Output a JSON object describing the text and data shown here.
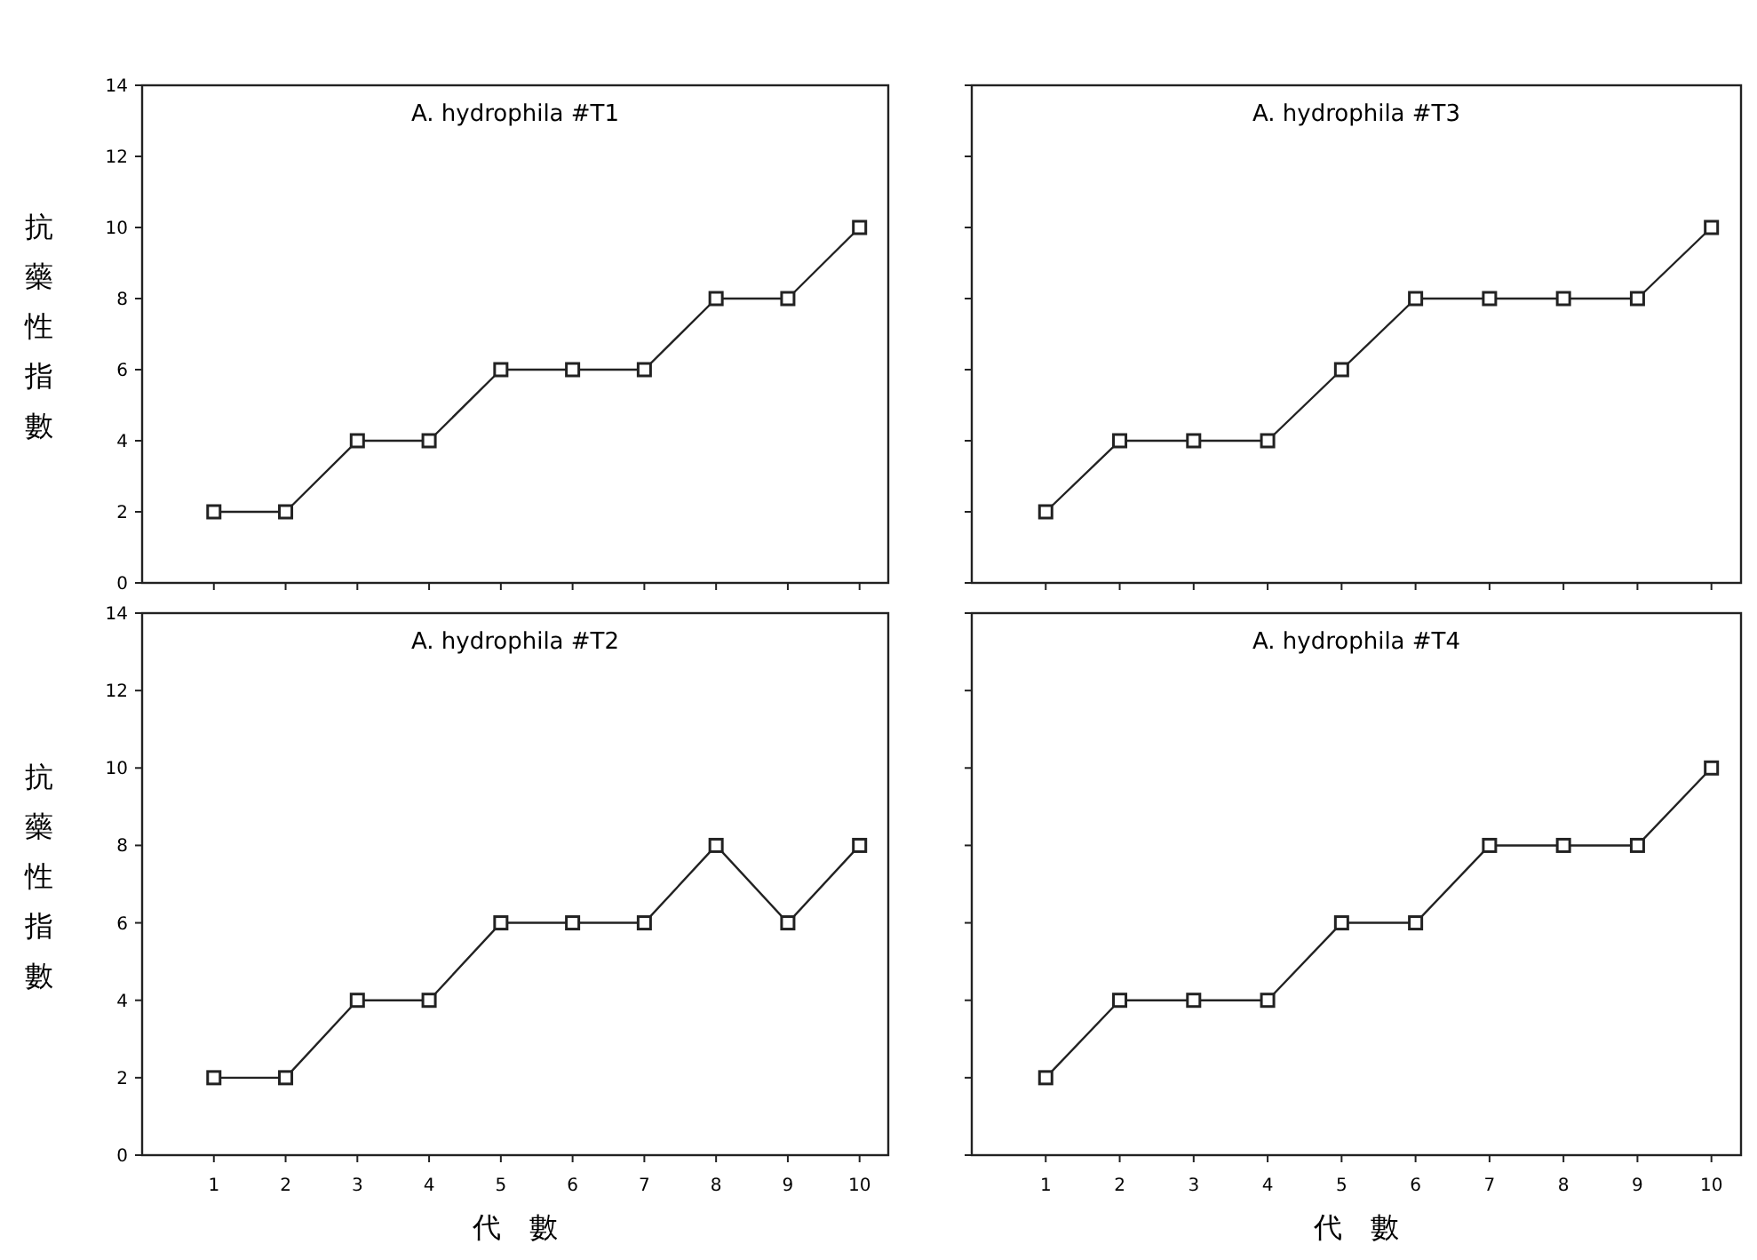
{
  "chart_data": [
    {
      "type": "line",
      "title": "A. hydrophila #T1",
      "ylabel": "抗藥性指數",
      "x": [
        1,
        2,
        3,
        4,
        5,
        6,
        7,
        8,
        9,
        10
      ],
      "series": [
        {
          "color": "#222222",
          "values": [
            2,
            2,
            4,
            4,
            6,
            6,
            6,
            8,
            8,
            10
          ]
        }
      ],
      "xlim": [
        0,
        10.4
      ],
      "xticks": [
        1,
        2,
        3,
        4,
        5,
        6,
        7,
        8,
        9,
        10
      ],
      "ylim": [
        0,
        14
      ],
      "yticks": [
        0,
        2,
        4,
        6,
        8,
        10,
        12,
        14
      ],
      "marker": "square",
      "grid": false,
      "tick_labels": "y"
    },
    {
      "type": "line",
      "title": "A. hydrophila #T3",
      "x": [
        1,
        2,
        3,
        4,
        5,
        6,
        7,
        8,
        9,
        10
      ],
      "series": [
        {
          "color": "#222222",
          "values": [
            2,
            4,
            4,
            4,
            6,
            8,
            8,
            8,
            8,
            10
          ]
        }
      ],
      "xlim": [
        0,
        10.4
      ],
      "xticks": [
        1,
        2,
        3,
        4,
        5,
        6,
        7,
        8,
        9,
        10
      ],
      "ylim": [
        0,
        14
      ],
      "yticks": [
        0,
        2,
        4,
        6,
        8,
        10,
        12,
        14
      ],
      "marker": "square",
      "grid": false,
      "tick_labels": false
    },
    {
      "type": "line",
      "title": "A. hydrophila #T2",
      "ylabel": "抗藥性指數",
      "xlabel": "代　數",
      "x": [
        1,
        2,
        3,
        4,
        5,
        6,
        7,
        8,
        9,
        10
      ],
      "series": [
        {
          "color": "#222222",
          "values": [
            2,
            2,
            4,
            4,
            6,
            6,
            6,
            8,
            6,
            8
          ]
        }
      ],
      "xlim": [
        0,
        10.4
      ],
      "xticks": [
        1,
        2,
        3,
        4,
        5,
        6,
        7,
        8,
        9,
        10
      ],
      "ylim": [
        0,
        14
      ],
      "yticks": [
        0,
        2,
        4,
        6,
        8,
        10,
        12,
        14
      ],
      "marker": "square",
      "grid": false
    },
    {
      "type": "line",
      "title": "A. hydrophila #T4",
      "xlabel": "代　數",
      "x": [
        1,
        2,
        3,
        4,
        5,
        6,
        7,
        8,
        9,
        10
      ],
      "series": [
        {
          "color": "#222222",
          "values": [
            2,
            4,
            4,
            4,
            6,
            6,
            8,
            8,
            8,
            10
          ]
        }
      ],
      "xlim": [
        0,
        10.4
      ],
      "xticks": [
        1,
        2,
        3,
        4,
        5,
        6,
        7,
        8,
        9,
        10
      ],
      "ylim": [
        0,
        14
      ],
      "yticks": [
        0,
        2,
        4,
        6,
        8,
        10,
        12,
        14
      ],
      "marker": "square",
      "grid": false,
      "tick_labels": "x"
    }
  ]
}
